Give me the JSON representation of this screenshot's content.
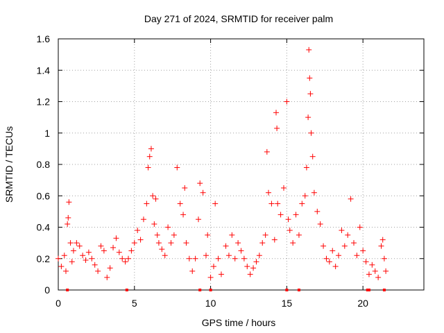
{
  "chart_data": {
    "type": "scatter",
    "title": "Day 271 of 2024, SRMTID for receiver palm",
    "xlabel": "GPS time / hours",
    "ylabel": "SRMTID / TECUs",
    "xlim": [
      0,
      24
    ],
    "ylim": [
      0,
      1.6
    ],
    "xticks": [
      0,
      5,
      10,
      15,
      20
    ],
    "xtick_labels": [
      "0",
      "5",
      "10",
      "15",
      "20"
    ],
    "yticks": [
      0,
      0.2,
      0.4,
      0.6,
      0.8,
      1.0,
      1.2,
      1.4,
      1.6
    ],
    "ytick_labels": [
      "0",
      "0.2",
      "0.4",
      "0.6",
      "0.8",
      "1",
      "1.2",
      "1.4",
      "1.6"
    ],
    "grid": true,
    "marker": "plus",
    "color": "#ff0000",
    "series": [
      {
        "name": "SRMTID",
        "points": [
          [
            0.0,
            0.2
          ],
          [
            0.2,
            0.15
          ],
          [
            0.4,
            0.22
          ],
          [
            0.5,
            0.12
          ],
          [
            0.6,
            0.42
          ],
          [
            0.65,
            0.46
          ],
          [
            0.7,
            0.56
          ],
          [
            0.8,
            0.3
          ],
          [
            0.9,
            0.18
          ],
          [
            1.0,
            0.25
          ],
          [
            1.2,
            0.3
          ],
          [
            1.4,
            0.28
          ],
          [
            1.6,
            0.22
          ],
          [
            1.8,
            0.19
          ],
          [
            2.0,
            0.24
          ],
          [
            2.2,
            0.2
          ],
          [
            2.4,
            0.16
          ],
          [
            2.6,
            0.12
          ],
          [
            2.8,
            0.28
          ],
          [
            3.0,
            0.25
          ],
          [
            3.2,
            0.08
          ],
          [
            3.4,
            0.14
          ],
          [
            3.6,
            0.27
          ],
          [
            3.8,
            0.33
          ],
          [
            4.0,
            0.24
          ],
          [
            4.2,
            0.2
          ],
          [
            4.4,
            0.18
          ],
          [
            4.6,
            0.2
          ],
          [
            4.8,
            0.25
          ],
          [
            5.0,
            0.3
          ],
          [
            5.2,
            0.38
          ],
          [
            5.4,
            0.32
          ],
          [
            5.6,
            0.45
          ],
          [
            5.8,
            0.55
          ],
          [
            5.9,
            0.78
          ],
          [
            6.0,
            0.85
          ],
          [
            6.1,
            0.9
          ],
          [
            6.2,
            0.6
          ],
          [
            6.3,
            0.42
          ],
          [
            6.4,
            0.58
          ],
          [
            6.5,
            0.35
          ],
          [
            6.6,
            0.3
          ],
          [
            6.8,
            0.26
          ],
          [
            7.0,
            0.22
          ],
          [
            7.2,
            0.4
          ],
          [
            7.4,
            0.3
          ],
          [
            7.6,
            0.35
          ],
          [
            7.8,
            0.78
          ],
          [
            8.0,
            0.55
          ],
          [
            8.2,
            0.48
          ],
          [
            8.3,
            0.65
          ],
          [
            8.4,
            0.3
          ],
          [
            8.6,
            0.2
          ],
          [
            8.8,
            0.12
          ],
          [
            9.0,
            0.2
          ],
          [
            9.2,
            0.45
          ],
          [
            9.3,
            0.68
          ],
          [
            9.5,
            0.62
          ],
          [
            9.7,
            0.22
          ],
          [
            9.8,
            0.35
          ],
          [
            10.0,
            0.08
          ],
          [
            10.2,
            0.15
          ],
          [
            10.3,
            0.55
          ],
          [
            10.5,
            0.2
          ],
          [
            10.7,
            0.1
          ],
          [
            11.0,
            0.28
          ],
          [
            11.2,
            0.22
          ],
          [
            11.4,
            0.35
          ],
          [
            11.6,
            0.2
          ],
          [
            11.8,
            0.3
          ],
          [
            12.0,
            0.25
          ],
          [
            12.2,
            0.2
          ],
          [
            12.4,
            0.15
          ],
          [
            12.6,
            0.1
          ],
          [
            12.8,
            0.14
          ],
          [
            13.0,
            0.18
          ],
          [
            13.2,
            0.22
          ],
          [
            13.4,
            0.3
          ],
          [
            13.6,
            0.35
          ],
          [
            13.7,
            0.88
          ],
          [
            13.8,
            0.62
          ],
          [
            14.0,
            0.55
          ],
          [
            14.2,
            0.32
          ],
          [
            14.3,
            1.13
          ],
          [
            14.35,
            1.03
          ],
          [
            14.4,
            0.55
          ],
          [
            14.6,
            0.48
          ],
          [
            14.8,
            0.65
          ],
          [
            15.0,
            1.2
          ],
          [
            15.1,
            0.45
          ],
          [
            15.2,
            0.38
          ],
          [
            15.4,
            0.3
          ],
          [
            15.6,
            0.48
          ],
          [
            15.8,
            0.35
          ],
          [
            16.0,
            0.55
          ],
          [
            16.2,
            0.6
          ],
          [
            16.3,
            0.78
          ],
          [
            16.4,
            1.1
          ],
          [
            16.45,
            1.53
          ],
          [
            16.5,
            1.35
          ],
          [
            16.55,
            1.25
          ],
          [
            16.6,
            1.0
          ],
          [
            16.7,
            0.85
          ],
          [
            16.8,
            0.62
          ],
          [
            17.0,
            0.5
          ],
          [
            17.2,
            0.42
          ],
          [
            17.4,
            0.28
          ],
          [
            17.6,
            0.2
          ],
          [
            17.8,
            0.18
          ],
          [
            18.0,
            0.25
          ],
          [
            18.2,
            0.15
          ],
          [
            18.4,
            0.22
          ],
          [
            18.6,
            0.38
          ],
          [
            18.8,
            0.28
          ],
          [
            19.0,
            0.35
          ],
          [
            19.2,
            0.58
          ],
          [
            19.4,
            0.3
          ],
          [
            19.6,
            0.22
          ],
          [
            19.8,
            0.4
          ],
          [
            20.0,
            0.25
          ],
          [
            20.2,
            0.18
          ],
          [
            20.4,
            0.1
          ],
          [
            20.6,
            0.16
          ],
          [
            20.8,
            0.12
          ],
          [
            21.0,
            0.08
          ],
          [
            21.2,
            0.28
          ],
          [
            21.3,
            0.32
          ],
          [
            21.4,
            0.2
          ],
          [
            21.5,
            0.12
          ]
        ]
      }
    ],
    "zero_markers_x": [
      0.6,
      4.5,
      9.3,
      10.0,
      15.0,
      15.8,
      20.3,
      20.4,
      21.4
    ]
  }
}
